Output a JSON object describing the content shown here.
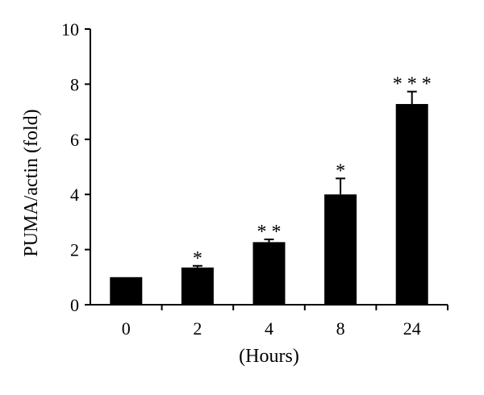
{
  "chart_data": {
    "type": "bar",
    "title": "",
    "xlabel": "(Hours)",
    "ylabel": "PUMA/actin (fold)",
    "categories": [
      "0",
      "2",
      "4",
      "8",
      "24"
    ],
    "values": [
      1.0,
      1.35,
      2.27,
      4.0,
      7.28
    ],
    "error": [
      0.0,
      0.06,
      0.1,
      0.58,
      0.45
    ],
    "significance": [
      "",
      "*",
      "* *",
      "*",
      "* * *"
    ],
    "ylim": [
      0,
      10
    ],
    "yticks": [
      "0",
      "2",
      "4",
      "6",
      "8",
      "10"
    ],
    "ytick_values": [
      0,
      2,
      4,
      6,
      8,
      10
    ],
    "grid": false,
    "legend": "none",
    "bar_color": "#000000"
  }
}
